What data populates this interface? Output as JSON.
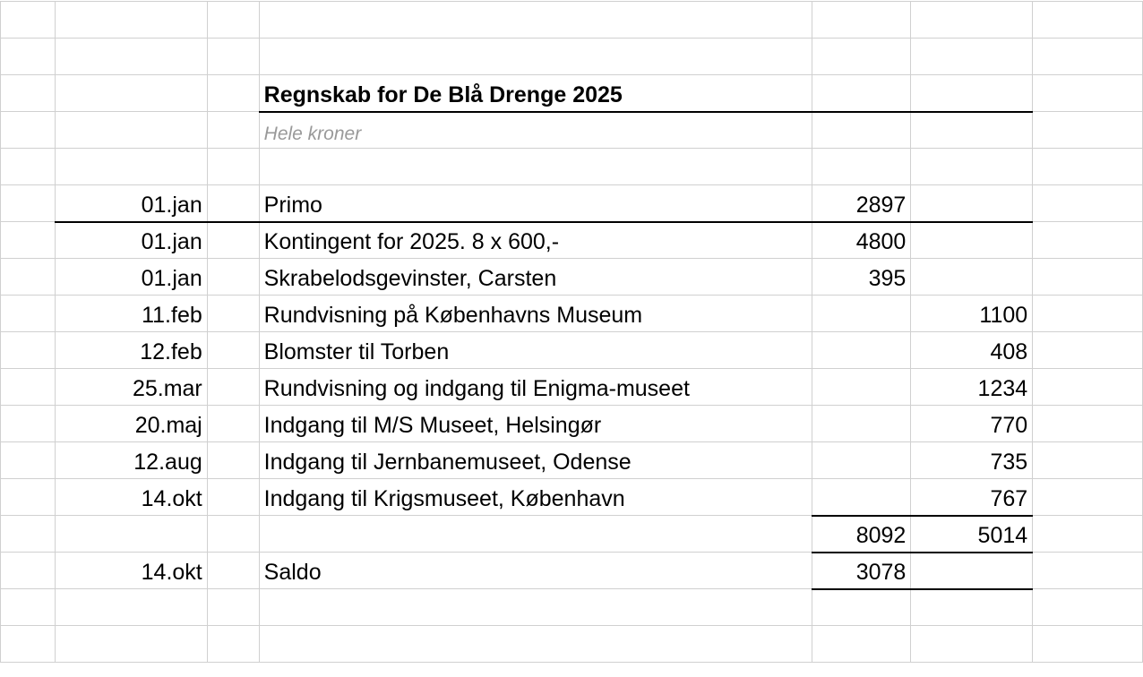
{
  "sheet": {
    "title": "Regnskab for De Blå Drenge 2025",
    "subtitle": "Hele kroner",
    "primo": {
      "date": "01.jan",
      "text": "Primo",
      "income": "2897"
    },
    "rows": [
      {
        "date": "01.jan",
        "text": "Kontingent for 2025. 8 x 600,-",
        "income": "4800",
        "expense": ""
      },
      {
        "date": "01.jan",
        "text": "Skrabelodsgevinster, Carsten",
        "income": "395",
        "expense": ""
      },
      {
        "date": "11.feb",
        "text": "Rundvisning på Københavns Museum",
        "income": "",
        "expense": "1100"
      },
      {
        "date": "12.feb",
        "text": "Blomster til Torben",
        "income": "",
        "expense": "408"
      },
      {
        "date": "25.mar",
        "text": "Rundvisning og indgang til Enigma-museet",
        "income": "",
        "expense": "1234"
      },
      {
        "date": "20.maj",
        "text": "Indgang til M/S Museet, Helsingør",
        "income": "",
        "expense": "770"
      },
      {
        "date": "12.aug",
        "text": "Indgang til Jernbanemuseet, Odense",
        "income": "",
        "expense": "735"
      },
      {
        "date": "14.okt",
        "text": "Indgang til Krigsmuseet, København",
        "income": "",
        "expense": "767"
      }
    ],
    "totals": {
      "income": "8092",
      "expense": "5014"
    },
    "saldo": {
      "date": "14.okt",
      "text": "Saldo",
      "value": "3078"
    }
  }
}
